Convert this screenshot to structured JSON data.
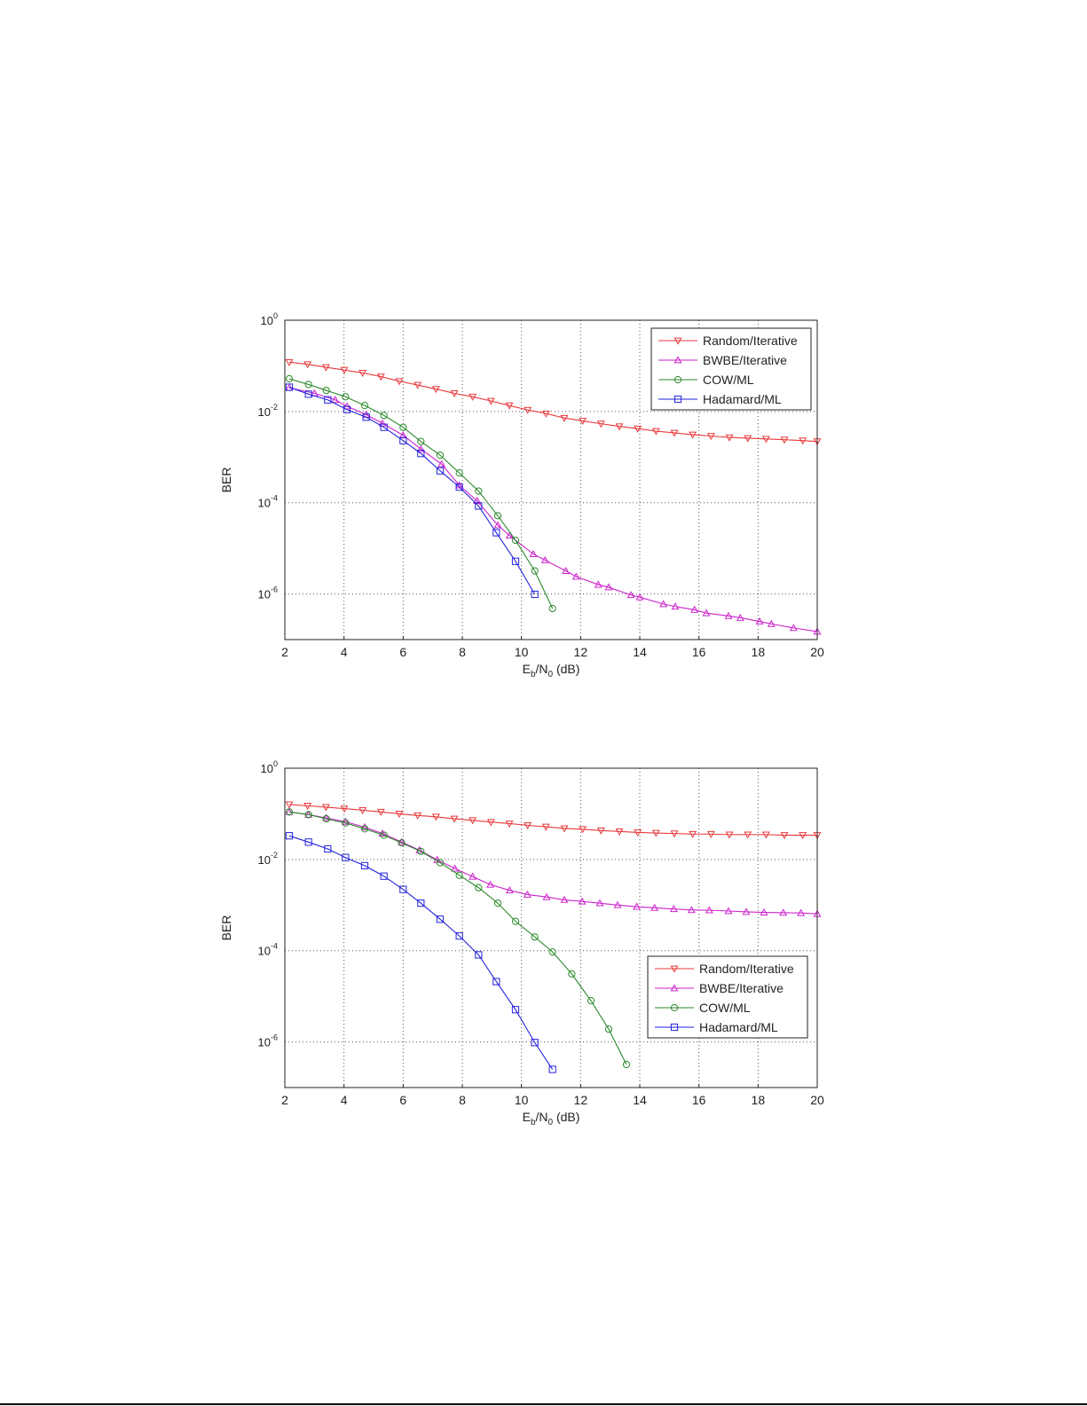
{
  "chart_data": [
    {
      "type": "line",
      "title": "",
      "xlabel": "Eb/N0 (dB)",
      "ylabel": "BER",
      "yscale": "log",
      "xlim": [
        2,
        20
      ],
      "ylim": [
        1e-07,
        1
      ],
      "xticks": [
        2,
        4,
        6,
        8,
        10,
        12,
        14,
        16,
        18,
        20
      ],
      "yticks": [
        "10^0",
        "10^-2",
        "10^-4",
        "10^-6"
      ],
      "grid": true,
      "legend_position": "upper right",
      "series": [
        {
          "name": "Random/Iterative",
          "color": "#e8383b",
          "marker": "triangle-down",
          "x": [
            2.15,
            2.77,
            3.39,
            4.01,
            4.63,
            5.25,
            5.87,
            6.49,
            7.11,
            7.73,
            8.35,
            8.97,
            9.59,
            10.21,
            10.83,
            11.45,
            12.07,
            12.69,
            13.31,
            13.93,
            14.55,
            15.17,
            15.79,
            16.41,
            17.03,
            17.65,
            18.27,
            18.89,
            19.51,
            20.0
          ],
          "values": [
            0.12,
            0.108,
            0.093,
            0.081,
            0.07,
            0.058,
            0.046,
            0.038,
            0.031,
            0.025,
            0.021,
            0.017,
            0.0135,
            0.0108,
            0.009,
            0.0072,
            0.0062,
            0.0054,
            0.0047,
            0.0042,
            0.0037,
            0.0034,
            0.0031,
            0.0029,
            0.0027,
            0.0026,
            0.0025,
            0.0024,
            0.0023,
            0.0022
          ]
        },
        {
          "name": "BWBE/Iterative",
          "color": "#cc22cc",
          "marker": "triangle-up",
          "x": [
            2.15,
            3.0,
            3.7,
            4.1,
            4.75,
            5.3,
            6.0,
            6.6,
            7.3,
            7.9,
            8.5,
            9.2,
            9.6,
            10.4,
            10.8,
            11.5,
            11.85,
            12.6,
            12.95,
            13.7,
            14.0,
            14.8,
            15.2,
            15.85,
            16.25,
            17.0,
            17.4,
            18.05,
            18.45,
            19.2,
            20.0
          ],
          "values": [
            0.033,
            0.025,
            0.018,
            0.013,
            0.0085,
            0.0055,
            0.003,
            0.0015,
            0.0007,
            0.00024,
            0.00011,
            3.2e-05,
            1.9e-05,
            7.5e-06,
            5.5e-06,
            3.2e-06,
            2.4e-06,
            1.6e-06,
            1.4e-06,
            9.5e-07,
            8.5e-07,
            6e-07,
            5.3e-07,
            4.5e-07,
            3.8e-07,
            3.3e-07,
            3e-07,
            2.5e-07,
            2.2e-07,
            1.8e-07,
            1.5e-07
          ]
        },
        {
          "name": "COW/ML",
          "color": "#2a8a2a",
          "marker": "circle",
          "x": [
            2.15,
            2.8,
            3.4,
            4.05,
            4.7,
            5.35,
            6.0,
            6.6,
            7.25,
            7.9,
            8.55,
            9.2,
            9.8,
            10.45,
            11.05
          ],
          "values": [
            0.052,
            0.039,
            0.029,
            0.021,
            0.0135,
            0.0082,
            0.0045,
            0.0022,
            0.0011,
            0.00045,
            0.00018,
            5.2e-05,
            1.5e-05,
            3.2e-06,
            4.8e-07
          ]
        },
        {
          "name": "Hadamard/ML",
          "color": "#2222dd",
          "marker": "square",
          "x": [
            2.15,
            2.8,
            3.45,
            4.1,
            4.75,
            5.35,
            6.0,
            6.6,
            7.25,
            7.9,
            8.55,
            9.15,
            9.8,
            10.45
          ],
          "values": [
            0.034,
            0.024,
            0.018,
            0.011,
            0.0075,
            0.0045,
            0.0023,
            0.0012,
            0.0005,
            0.00022,
            8.5e-05,
            2.2e-05,
            5.2e-06,
            9.8e-07
          ]
        }
      ]
    },
    {
      "type": "line",
      "title": "",
      "xlabel": "Eb/N0 (dB)",
      "ylabel": "BER",
      "yscale": "log",
      "xlim": [
        2,
        20
      ],
      "ylim": [
        1e-07,
        1
      ],
      "xticks": [
        2,
        4,
        6,
        8,
        10,
        12,
        14,
        16,
        18,
        20
      ],
      "yticks": [
        "10^0",
        "10^-2",
        "10^-4",
        "10^-6"
      ],
      "grid": true,
      "legend_position": "lower right",
      "series": [
        {
          "name": "Random/Iterative",
          "color": "#e8383b",
          "marker": "triangle-down",
          "x": [
            2.15,
            2.77,
            3.39,
            4.01,
            4.63,
            5.25,
            5.87,
            6.49,
            7.11,
            7.73,
            8.35,
            8.97,
            9.59,
            10.21,
            10.83,
            11.45,
            12.07,
            12.69,
            13.31,
            13.93,
            14.55,
            15.17,
            15.79,
            16.41,
            17.03,
            17.65,
            18.27,
            18.89,
            19.51,
            20.0
          ],
          "values": [
            0.16,
            0.15,
            0.14,
            0.13,
            0.12,
            0.11,
            0.1,
            0.092,
            0.086,
            0.078,
            0.072,
            0.066,
            0.061,
            0.056,
            0.052,
            0.048,
            0.046,
            0.043,
            0.041,
            0.039,
            0.038,
            0.037,
            0.036,
            0.036,
            0.035,
            0.035,
            0.035,
            0.034,
            0.034,
            0.034
          ]
        },
        {
          "name": "BWBE/Iterative",
          "color": "#cc22cc",
          "marker": "triangle-up",
          "x": [
            2.15,
            2.8,
            3.4,
            4.05,
            4.7,
            5.3,
            5.95,
            6.55,
            7.15,
            7.75,
            8.35,
            8.95,
            9.6,
            10.2,
            10.85,
            11.45,
            12.05,
            12.65,
            13.25,
            13.9,
            14.5,
            15.15,
            15.75,
            16.35,
            17.0,
            17.6,
            18.2,
            18.85,
            19.45,
            20.0
          ],
          "values": [
            0.11,
            0.096,
            0.081,
            0.067,
            0.051,
            0.037,
            0.024,
            0.016,
            0.0098,
            0.0063,
            0.0042,
            0.0028,
            0.0021,
            0.0017,
            0.0015,
            0.0013,
            0.0012,
            0.0011,
            0.001,
            0.00092,
            0.00087,
            0.00082,
            0.00078,
            0.00077,
            0.00074,
            0.00071,
            0.00069,
            0.00068,
            0.00067,
            0.00064
          ]
        },
        {
          "name": "COW/ML",
          "color": "#2a8a2a",
          "marker": "circle",
          "x": [
            2.15,
            2.8,
            3.4,
            4.05,
            4.7,
            5.35,
            5.95,
            6.6,
            7.25,
            7.9,
            8.55,
            9.2,
            9.8,
            10.45,
            11.05,
            11.7,
            12.35,
            12.95,
            13.55
          ],
          "values": [
            0.11,
            0.096,
            0.078,
            0.063,
            0.047,
            0.034,
            0.023,
            0.015,
            0.0085,
            0.0045,
            0.0024,
            0.0011,
            0.00044,
            0.0002,
            9.4e-05,
            3.1e-05,
            8e-06,
            1.9e-06,
            3.2e-07
          ]
        },
        {
          "name": "Hadamard/ML",
          "color": "#2222dd",
          "marker": "square",
          "x": [
            2.15,
            2.8,
            3.45,
            4.05,
            4.7,
            5.35,
            6.0,
            6.6,
            7.25,
            7.9,
            8.55,
            9.15,
            9.8,
            10.45,
            11.05
          ],
          "values": [
            0.033,
            0.024,
            0.017,
            0.011,
            0.0073,
            0.0043,
            0.0022,
            0.0011,
            0.00049,
            0.00021,
            8.1e-05,
            2.1e-05,
            5.1e-06,
            9.7e-07,
            2.5e-07
          ]
        }
      ]
    }
  ],
  "figures": [
    {
      "ylabel": "BER",
      "xlabel_main": "E",
      "xlabel_sub1": "b",
      "xlabel_mid": "/N",
      "xlabel_sub2": "0",
      "xlabel_tail": " (dB)",
      "xtick_labels": [
        "2",
        "4",
        "6",
        "8",
        "10",
        "12",
        "14",
        "16",
        "18",
        "20"
      ],
      "ytick_base": "10",
      "ytick_exponents": [
        "0",
        "-2",
        "-4",
        "-6"
      ],
      "legend": [
        "Random/Iterative",
        "BWBE/Iterative",
        "COW/ML",
        "Hadamard/ML"
      ]
    },
    {
      "ylabel": "BER",
      "xlabel_main": "E",
      "xlabel_sub1": "b",
      "xlabel_mid": "/N",
      "xlabel_sub2": "0",
      "xlabel_tail": " (dB)",
      "xtick_labels": [
        "2",
        "4",
        "6",
        "8",
        "10",
        "12",
        "14",
        "16",
        "18",
        "20"
      ],
      "ytick_base": "10",
      "ytick_exponents": [
        "0",
        "-2",
        "-4",
        "-6"
      ],
      "legend": [
        "Random/Iterative",
        "BWBE/Iterative",
        "COW/ML",
        "Hadamard/ML"
      ]
    }
  ]
}
